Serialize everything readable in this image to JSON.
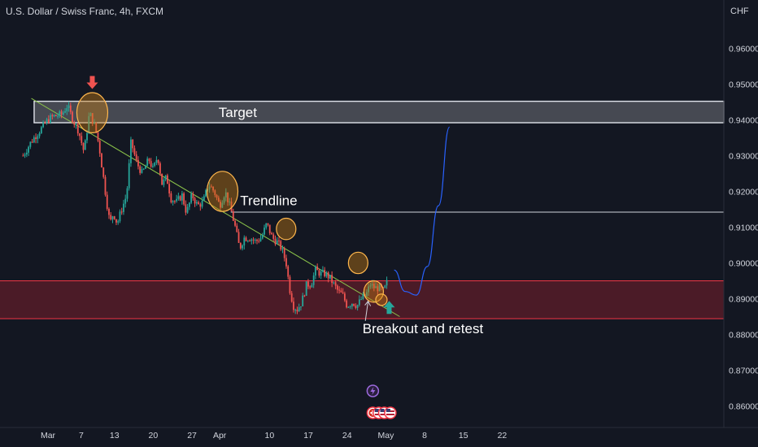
{
  "header": {
    "title": "U.S. Dollar / Swiss Franc, 4h, FXCM"
  },
  "price_axis": {
    "currency": "CHF",
    "ticks": [
      {
        "value": 0.96,
        "label": "0.96000"
      },
      {
        "value": 0.95,
        "label": "0.95000"
      },
      {
        "value": 0.94,
        "label": "0.94000"
      },
      {
        "value": 0.93,
        "label": "0.93000"
      },
      {
        "value": 0.92,
        "label": "0.92000"
      },
      {
        "value": 0.91,
        "label": "0.91000"
      },
      {
        "value": 0.9,
        "label": "0.90000"
      },
      {
        "value": 0.89,
        "label": "0.89000"
      },
      {
        "value": 0.88,
        "label": "0.88000"
      },
      {
        "value": 0.87,
        "label": "0.87000"
      },
      {
        "value": 0.86,
        "label": "0.86000"
      }
    ]
  },
  "time_axis": {
    "ticks": [
      {
        "label": "Mar",
        "day": 0
      },
      {
        "label": "7",
        "day": 6
      },
      {
        "label": "13",
        "day": 12
      },
      {
        "label": "20",
        "day": 19
      },
      {
        "label": "27",
        "day": 26
      },
      {
        "label": "Apr",
        "day": 31
      },
      {
        "label": "10",
        "day": 40
      },
      {
        "label": "17",
        "day": 47
      },
      {
        "label": "24",
        "day": 54
      },
      {
        "label": "May",
        "day": 61
      },
      {
        "label": "8",
        "day": 68
      },
      {
        "label": "15",
        "day": 75
      },
      {
        "label": "22",
        "day": 82
      }
    ]
  },
  "chart_data": {
    "type": "candlestick",
    "instrument": "U.S. Dollar / Swiss Franc",
    "interval": "4h",
    "source": "FXCM",
    "ylim": [
      0.8542,
      0.9705
    ],
    "grid": false,
    "price_path": [
      [
        -4.5,
        0.93
      ],
      [
        -3,
        0.934
      ],
      [
        -1.5,
        0.937
      ],
      [
        0,
        0.94
      ],
      [
        1,
        0.941
      ],
      [
        2.5,
        0.9415
      ],
      [
        3.5,
        0.944
      ],
      [
        4.5,
        0.94
      ],
      [
        5.5,
        0.937
      ],
      [
        6.5,
        0.931
      ],
      [
        7.5,
        0.942
      ],
      [
        8.5,
        0.938
      ],
      [
        9.2,
        0.933
      ],
      [
        10,
        0.924
      ],
      [
        10.6,
        0.917
      ],
      [
        11.2,
        0.911
      ],
      [
        11.8,
        0.914
      ],
      [
        12.5,
        0.911
      ],
      [
        13.3,
        0.915
      ],
      [
        14.2,
        0.919
      ],
      [
        15,
        0.934
      ],
      [
        16,
        0.928
      ],
      [
        17,
        0.925
      ],
      [
        18.2,
        0.929
      ],
      [
        19,
        0.926
      ],
      [
        19.8,
        0.93
      ],
      [
        20.6,
        0.922
      ],
      [
        21.4,
        0.924
      ],
      [
        22.2,
        0.918
      ],
      [
        23.2,
        0.917
      ],
      [
        24.2,
        0.919
      ],
      [
        25,
        0.914
      ],
      [
        26,
        0.919
      ],
      [
        27,
        0.916
      ],
      [
        28,
        0.917
      ],
      [
        29,
        0.922
      ],
      [
        30,
        0.92
      ],
      [
        31,
        0.916
      ],
      [
        32,
        0.92
      ],
      [
        33,
        0.915
      ],
      [
        33.8,
        0.91
      ],
      [
        34.6,
        0.904
      ],
      [
        35.4,
        0.907
      ],
      [
        36.5,
        0.907
      ],
      [
        37.5,
        0.906
      ],
      [
        38.5,
        0.907
      ],
      [
        39.5,
        0.911
      ],
      [
        40.5,
        0.907
      ],
      [
        41.3,
        0.906
      ],
      [
        42.2,
        0.904
      ],
      [
        43,
        0.9
      ],
      [
        43.6,
        0.893
      ],
      [
        44.3,
        0.888
      ],
      [
        45,
        0.887
      ],
      [
        45.8,
        0.889
      ],
      [
        46.7,
        0.894
      ],
      [
        47.5,
        0.894
      ],
      [
        48.3,
        0.898
      ],
      [
        49.2,
        0.897
      ],
      [
        50,
        0.897
      ],
      [
        50.8,
        0.896
      ],
      [
        51.6,
        0.894
      ],
      [
        52.4,
        0.892
      ],
      [
        53.2,
        0.891
      ],
      [
        54,
        0.888
      ],
      [
        55,
        0.889
      ],
      [
        55.8,
        0.888
      ],
      [
        56.6,
        0.89
      ],
      [
        57.4,
        0.891
      ],
      [
        58.2,
        0.894
      ],
      [
        59,
        0.893
      ],
      [
        59.8,
        0.893
      ],
      [
        60.6,
        0.892
      ],
      [
        61.3,
        0.895
      ]
    ],
    "zones": [
      {
        "label": "Target",
        "kind": "resistance",
        "price_low": 0.9392,
        "price_high": 0.9452
      },
      {
        "label": "",
        "kind": "support",
        "price_low": 0.8844,
        "price_high": 0.895
      }
    ],
    "lines": [
      {
        "label": "Trendline",
        "kind": "trendline",
        "from": {
          "day": -3,
          "price": 0.946
        },
        "to": {
          "day": 63.5,
          "price": 0.885
        }
      },
      {
        "label": "",
        "kind": "horizontal",
        "from": {
          "day": 33,
          "price": 0.9142
        },
        "to": {
          "day": 86,
          "price": 0.9142
        }
      }
    ],
    "circles": [
      {
        "day": 8.0,
        "price": 0.942,
        "size": "large"
      },
      {
        "day": 31.5,
        "price": 0.92,
        "size": "large"
      },
      {
        "day": 43.0,
        "price": 0.9095,
        "size": "small"
      },
      {
        "day": 56.0,
        "price": 0.9,
        "size": "small"
      },
      {
        "day": 58.8,
        "price": 0.892,
        "size": "small"
      },
      {
        "day": 60.2,
        "price": 0.8897,
        "size": "tiny"
      }
    ],
    "arrows": [
      {
        "direction": "down",
        "day": 8.0,
        "price": 0.95,
        "color": "#ef5350"
      },
      {
        "direction": "up",
        "day": 61.6,
        "price": 0.888,
        "color": "#26a69a"
      }
    ],
    "projection": [
      [
        62.5,
        0.898
      ],
      [
        64.5,
        0.892
      ],
      [
        66.5,
        0.891
      ],
      [
        68.5,
        0.899
      ],
      [
        70.5,
        0.916
      ],
      [
        72.5,
        0.938
      ]
    ],
    "annotations": [
      {
        "text": "Target",
        "day": 30.8,
        "price": 0.9422
      },
      {
        "text": "Trendline",
        "day": 34.7,
        "price": 0.9175
      },
      {
        "text": "Breakout and retest",
        "day": 56.8,
        "price": 0.8817
      }
    ],
    "annotation_pointer": {
      "from": {
        "day": 57.3,
        "price": 0.8838
      },
      "to": {
        "day": 57.8,
        "price": 0.8893
      }
    },
    "event_markers": [
      {
        "icon": "lightning-icon",
        "day": 58.5,
        "color": "#9c6ade"
      },
      {
        "icon": "swiss-flag-icon",
        "day": 58.5,
        "color": "#f23645"
      },
      {
        "icon": "us-flag-icon",
        "day": 59.5,
        "color": "#f23645"
      },
      {
        "icon": "us-flag-icon",
        "day": 60.4,
        "color": "#f23645"
      },
      {
        "icon": "us-flag-icon",
        "day": 61.4,
        "color": "#f23645"
      }
    ]
  },
  "colors": {
    "background": "#131722",
    "up": "#26a69a",
    "down": "#ef5350",
    "text": "#d1d4dc",
    "trendline": "#8bc34a",
    "projection": "#2962ff",
    "circle_fill": "#c67c12",
    "circle_stroke": "#ffb74d",
    "target_zone": "#ffffff",
    "support_zone": "#7a1f2b",
    "support_border": "#f23645"
  }
}
